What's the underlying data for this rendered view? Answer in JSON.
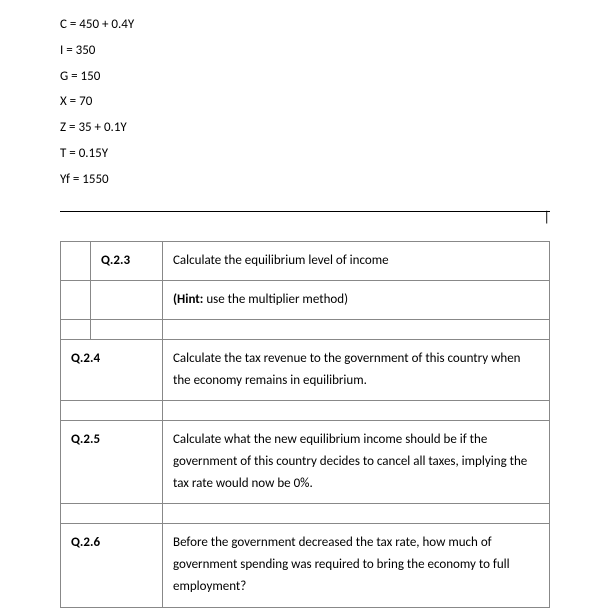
{
  "equations": [
    "C = 450 + 0.4Y",
    "I = 350",
    "G = 150",
    "X = 70",
    "Z = 35 + 0.1Y",
    "T = 0.15Y",
    "Yf =  1550"
  ],
  "cursor": "|",
  "questions": {
    "q23": {
      "num": "Q.2.3",
      "text": "Calculate the equilibrium level of income",
      "hint_label": "(Hint:",
      "hint_text": " use the multiplier method)"
    },
    "q24": {
      "num": "Q.2.4",
      "text": "Calculate the tax revenue to the government of this country when the economy remains in equilibrium."
    },
    "q25": {
      "num": "Q.2.5",
      "text": "Calculate what the new equilibrium income should be if the government of this country decides to cancel all taxes, implying the tax rate would now be 0%."
    },
    "q26": {
      "num": "Q.2.6",
      "text": "Before the government decreased the tax rate, how much of government spending was required to bring the economy to full employment?"
    }
  }
}
